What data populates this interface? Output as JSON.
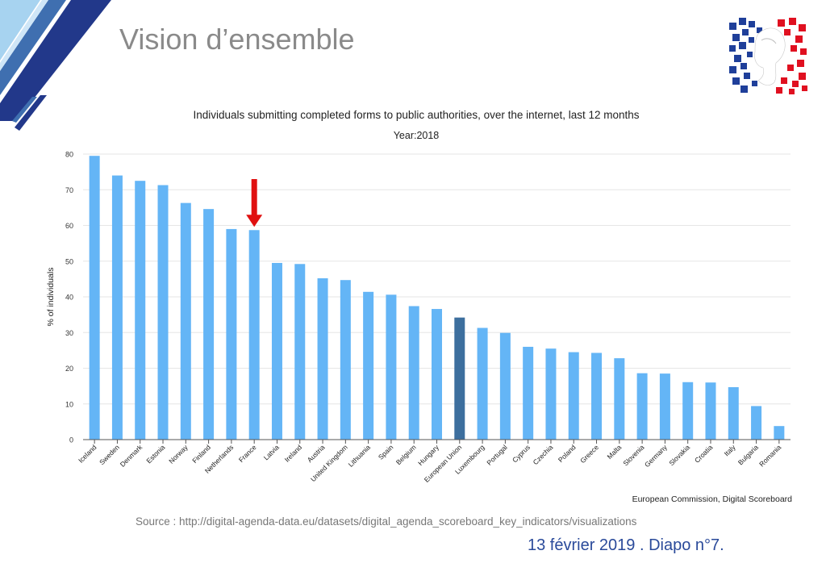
{
  "slide": {
    "title": "Vision d’ensemble",
    "source": "Source : http://digital-agenda-data.eu/datasets/digital_agenda_scoreboard_key_indicators/visualizations",
    "footer": "13 février 2019 . Diapo n°7."
  },
  "colors": {
    "bar": "#64b5f6",
    "highlight_bar": "#3d6f9e",
    "arrow": "#e01010",
    "title": "#8a8a8a",
    "footer": "#2a4a9a",
    "logo_blue": "#1f3f9a",
    "logo_red": "#e01020"
  },
  "chart_data": {
    "type": "bar",
    "title": "Individuals submitting completed forms to public authorities, over the internet, last 12 months",
    "subtitle": "Year:2018",
    "ylabel": "% of individuals",
    "xlabel": "",
    "credit": "European Commission, Digital Scoreboard",
    "ylim": [
      0,
      80
    ],
    "yticks": [
      0,
      10,
      20,
      30,
      40,
      50,
      60,
      70,
      80
    ],
    "grid": true,
    "highlight_category": "European Union",
    "annotation": {
      "type": "arrow",
      "target": "France"
    },
    "categories": [
      "Iceland",
      "Sweden",
      "Denmark",
      "Estonia",
      "Norway",
      "Finland",
      "Netherlands",
      "France",
      "Latvia",
      "Ireland",
      "Austria",
      "United Kingdom",
      "Lithuania",
      "Spain",
      "Belgium",
      "Hungary",
      "European Union",
      "Luxembourg",
      "Portugal",
      "Cyprus",
      "Czechia",
      "Poland",
      "Greece",
      "Malta",
      "Slovenia",
      "Germany",
      "Slovakia",
      "Croatia",
      "Italy",
      "Bulgaria",
      "Romania"
    ],
    "values": [
      79.5,
      74,
      72.5,
      71.3,
      66.3,
      64.6,
      59,
      58.7,
      49.5,
      49.2,
      45.2,
      44.7,
      41.4,
      40.6,
      37.4,
      36.6,
      34.2,
      31.3,
      29.9,
      26,
      25.5,
      24.5,
      24.3,
      22.8,
      18.6,
      18.5,
      16.1,
      16,
      14.7,
      9.4,
      3.8
    ]
  }
}
